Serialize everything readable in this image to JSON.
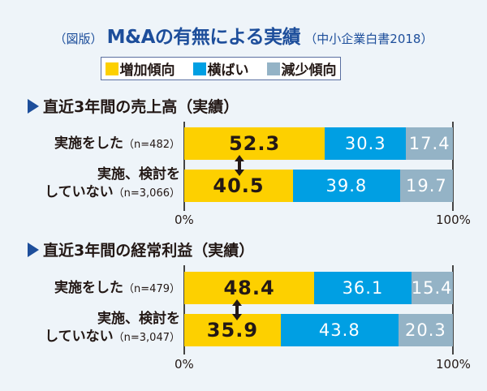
{
  "title": {
    "prefix": "（図版）",
    "main": "M&Aの有無による実績",
    "source": "（中小企業白書2018）"
  },
  "legend": [
    {
      "label": "増加傾向",
      "color": "#fdd000"
    },
    {
      "label": "横ばい",
      "color": "#009fe3"
    },
    {
      "label": "減少傾向",
      "color": "#94b3c6"
    }
  ],
  "chart_data": [
    {
      "type": "bar",
      "orientation": "horizontal-stacked-100",
      "title": "直近3年間の売上高（実績）",
      "categories": [
        {
          "line1": "実施をした",
          "n": "（n=482）"
        },
        {
          "line1": "実施、検討を",
          "line2": "していない",
          "n": "（n=3,066）"
        }
      ],
      "series": [
        {
          "name": "増加傾向",
          "values": [
            52.3,
            40.5
          ]
        },
        {
          "name": "横ばい",
          "values": [
            30.3,
            39.8
          ]
        },
        {
          "name": "減少傾向",
          "values": [
            17.4,
            19.7
          ]
        }
      ],
      "xlim": [
        0,
        100
      ],
      "xticks": [
        "0%",
        "100%"
      ],
      "annotation": "double-arrow comparing 増加傾向 between rows"
    },
    {
      "type": "bar",
      "orientation": "horizontal-stacked-100",
      "title": "直近3年間の経常利益（実績）",
      "categories": [
        {
          "line1": "実施をした",
          "n": "（n=479）"
        },
        {
          "line1": "実施、検討を",
          "line2": "していない",
          "n": "（n=3,047）"
        }
      ],
      "series": [
        {
          "name": "増加傾向",
          "values": [
            48.4,
            35.9
          ]
        },
        {
          "name": "横ばい",
          "values": [
            36.1,
            43.8
          ]
        },
        {
          "name": "減少傾向",
          "values": [
            15.4,
            20.3
          ]
        }
      ],
      "xlim": [
        0,
        100
      ],
      "xticks": [
        "0%",
        "100%"
      ],
      "annotation": "double-arrow comparing 増加傾向 between rows"
    }
  ]
}
